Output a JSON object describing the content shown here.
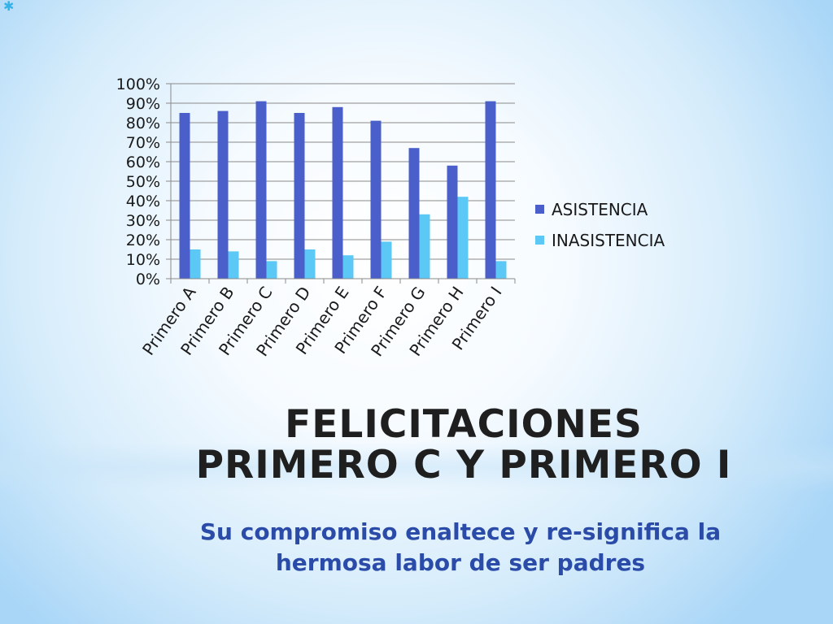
{
  "slide": {
    "title": "FELICITACIONES PRIMERO C Y PRIMERO I",
    "subtitle": "Su compromiso enaltece  y re-significa la hermosa labor de ser padres"
  },
  "colors": {
    "asistencia": "#4a5fc9",
    "inasistencia": "#5bc8f5",
    "title": "#1f1f1f",
    "subtitle": "#2b4ba8"
  },
  "chart_data": {
    "type": "bar",
    "categories": [
      "Primero A",
      "Primero B",
      "Primero C",
      "Primero D",
      "Primero E",
      "Primero F",
      "Primero G",
      "Primero H",
      "Primero I"
    ],
    "series": [
      {
        "name": "ASISTENCIA",
        "values": [
          85,
          86,
          91,
          85,
          88,
          81,
          67,
          58,
          91
        ]
      },
      {
        "name": "INASISTENCIA",
        "values": [
          15,
          14,
          9,
          15,
          12,
          19,
          33,
          42,
          9
        ]
      }
    ],
    "yticks": [
      "0%",
      "10%",
      "20%",
      "30%",
      "40%",
      "50%",
      "60%",
      "70%",
      "80%",
      "90%",
      "100%"
    ],
    "ylim": [
      0,
      100
    ],
    "grid": true,
    "legend": "right"
  }
}
